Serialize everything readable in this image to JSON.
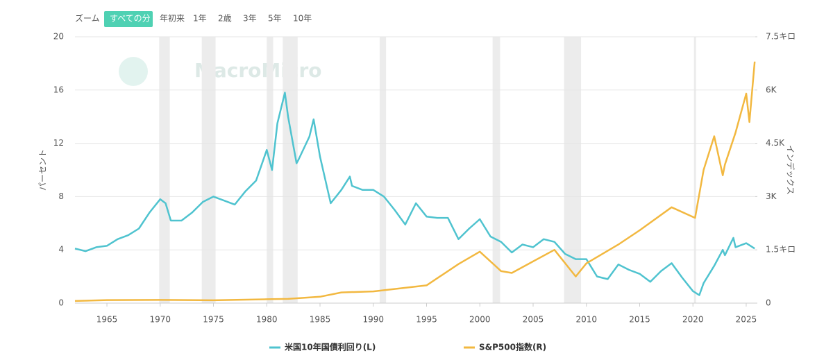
{
  "zoom": {
    "label": "ズーム",
    "buttons": [
      "すべての分",
      "年初来",
      "1年",
      "2歳",
      "3年",
      "5年",
      "10年"
    ],
    "selected": 0
  },
  "watermark": "MacroMicro",
  "chart_data": {
    "type": "line",
    "y_label": "パーセント",
    "y2_label": "インデックス",
    "xlim": [
      1962,
      2025.85
    ],
    "xticks": [
      1965,
      1970,
      1975,
      1980,
      1985,
      1990,
      1995,
      2000,
      2005,
      2010,
      2015,
      2020,
      2025
    ],
    "ylim": [
      0,
      20
    ],
    "yticks": [
      0,
      4,
      8,
      12,
      16,
      20
    ],
    "y2lim": [
      0,
      7500
    ],
    "y2ticks": [
      0,
      {
        "value": 1500,
        "label": "1.5キロ"
      },
      {
        "value": 3000,
        "label": "3K"
      },
      {
        "value": 4500,
        "label": "4.5K"
      },
      {
        "value": 6000,
        "label": "6K"
      },
      {
        "value": 7500,
        "label": "7.5キロ"
      }
    ],
    "grid": true,
    "recessions": [
      [
        1969.9,
        1970.9
      ],
      [
        1973.9,
        1975.2
      ],
      [
        1980.0,
        1980.6
      ],
      [
        1981.5,
        1982.9
      ],
      [
        1990.6,
        1991.2
      ],
      [
        2001.2,
        2001.9
      ],
      [
        2007.9,
        2009.5
      ],
      [
        2020.1,
        2020.3
      ]
    ],
    "series": [
      {
        "name": "米国10年国債利回り(L)",
        "color": "#4fc3cf",
        "x": [
          1962,
          1963,
          1964,
          1965,
          1966,
          1967,
          1968,
          1969,
          1970,
          1970.5,
          1971,
          1972,
          1973,
          1974,
          1975,
          1976,
          1977,
          1978,
          1979,
          1980,
          1980.5,
          1981,
          1981.7,
          1982,
          1982.8,
          1983,
          1984,
          1984.4,
          1985,
          1986,
          1987,
          1987.8,
          1988,
          1989,
          1990,
          1991,
          1992,
          1993,
          1994,
          1995,
          1996,
          1997,
          1998,
          1999,
          2000,
          2001,
          2002,
          2003,
          2004,
          2005,
          2006,
          2007,
          2008,
          2009,
          2010,
          2011,
          2012,
          2013,
          2014,
          2015,
          2016,
          2017,
          2018,
          2019,
          2020,
          2020.6,
          2021,
          2022,
          2022.8,
          2023,
          2023.8,
          2024,
          2025,
          2025.8
        ],
        "values": [
          4.1,
          3.9,
          4.2,
          4.3,
          4.8,
          5.1,
          5.6,
          6.8,
          7.8,
          7.5,
          6.2,
          6.2,
          6.8,
          7.6,
          8.0,
          7.7,
          7.4,
          8.4,
          9.2,
          11.5,
          10.0,
          13.5,
          15.8,
          14.0,
          10.5,
          10.8,
          12.5,
          13.8,
          11.0,
          7.5,
          8.5,
          9.5,
          8.8,
          8.5,
          8.5,
          8.0,
          7.0,
          5.9,
          7.5,
          6.5,
          6.4,
          6.4,
          4.8,
          5.6,
          6.3,
          5.0,
          4.6,
          3.8,
          4.4,
          4.2,
          4.8,
          4.6,
          3.7,
          3.3,
          3.3,
          2.0,
          1.8,
          2.9,
          2.5,
          2.2,
          1.6,
          2.4,
          3.0,
          1.9,
          0.9,
          0.6,
          1.5,
          2.8,
          4.0,
          3.6,
          4.9,
          4.2,
          4.5,
          4.1
        ]
      },
      {
        "name": "S&P500指数(R)",
        "color": "#f2b840",
        "axis": "y2",
        "x": [
          1962,
          1965,
          1970,
          1975,
          1980,
          1982,
          1985,
          1987,
          1990,
          1995,
          1998,
          2000,
          2002,
          2003,
          2007,
          2009,
          2010,
          2013,
          2015,
          2018,
          2020.2,
          2021,
          2022,
          2022.8,
          2023,
          2024,
          2025,
          2025.3,
          2025.8
        ],
        "values": [
          60,
          85,
          90,
          80,
          110,
          120,
          180,
          300,
          330,
          500,
          1100,
          1450,
          900,
          850,
          1500,
          750,
          1120,
          1650,
          2050,
          2700,
          2400,
          3750,
          4700,
          3600,
          3900,
          4800,
          5900,
          5100,
          6800
        ]
      }
    ]
  }
}
